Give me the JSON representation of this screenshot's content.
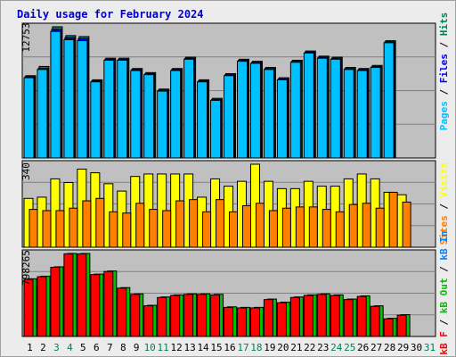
{
  "title": "Daily usage for February 2024",
  "colors": {
    "title": "#0000cc",
    "panel_bg": "#c0c0c0",
    "grid": "#808080",
    "hits": "#00805c",
    "files": "#0000ff",
    "pages": "#00c0ff",
    "visits": "#ffff00",
    "sites": "#ff8000",
    "kbin": "#0080ff",
    "kbout": "#00c000",
    "kbf": "#ff0000",
    "weekend": "#00805c",
    "weekday": "#000000"
  },
  "labels": {
    "top_axis": "12753",
    "mid_axis": "340",
    "bot_axis": "798265",
    "top_legend": [
      {
        "text": "Pages",
        "color": "#00c0ff"
      },
      {
        "text": " / ",
        "color": "#000000"
      },
      {
        "text": "Files",
        "color": "#0000ff"
      },
      {
        "text": " / ",
        "color": "#000000"
      },
      {
        "text": "Hits",
        "color": "#00805c"
      }
    ],
    "mid_legend": [
      {
        "text": "Sites",
        "color": "#ff8000"
      },
      {
        "text": " / ",
        "color": "#000000"
      },
      {
        "text": "Visits",
        "color": "#ffff00"
      }
    ],
    "bot_legend": [
      {
        "text": "kB F",
        "color": "#ff0000"
      },
      {
        "text": " / ",
        "color": "#000000"
      },
      {
        "text": "kB Out",
        "color": "#00c000"
      },
      {
        "text": " / ",
        "color": "#000000"
      },
      {
        "text": "kB In",
        "color": "#0080ff"
      }
    ]
  },
  "chart_data": {
    "type": "bar",
    "title": "Daily usage for February 2024",
    "x": [
      "1",
      "2",
      "3",
      "4",
      "5",
      "6",
      "7",
      "8",
      "9",
      "10",
      "11",
      "12",
      "13",
      "14",
      "15",
      "16",
      "17",
      "18",
      "19",
      "20",
      "21",
      "22",
      "23",
      "24",
      "25",
      "26",
      "27",
      "28",
      "29",
      "30",
      "31"
    ],
    "weekend_days": [
      "3",
      "4",
      "10",
      "11",
      "17",
      "18",
      "24",
      "25",
      "31"
    ],
    "panels": [
      {
        "max_label": "12753",
        "ymax": 12753,
        "series": [
          {
            "name": "Hits",
            "values": [
              8000,
              8900,
              12753,
              11900,
              11800,
              7600,
              9700,
              9700,
              8700,
              8300,
              6700,
              8700,
              9800,
              7600,
              5800,
              8200,
              9600,
              9400,
              8800,
              7800,
              9500,
              10400,
              9900,
              9800,
              8800,
              8700,
              9000,
              11400,
              0,
              0,
              0
            ]
          },
          {
            "name": "Files",
            "values": [
              7900,
              8700,
              12500,
              11700,
              11600,
              7500,
              9600,
              9600,
              8600,
              8200,
              6600,
              8600,
              9700,
              7500,
              5700,
              8100,
              9500,
              9300,
              8700,
              7700,
              9400,
              10300,
              9800,
              9700,
              8700,
              8600,
              8900,
              11300,
              0,
              0,
              0
            ]
          },
          {
            "name": "Pages",
            "values": [
              7800,
              8600,
              12300,
              11500,
              11400,
              7400,
              9500,
              9500,
              8500,
              8100,
              6500,
              8500,
              9600,
              7400,
              5600,
              8000,
              9400,
              9200,
              8600,
              7600,
              9300,
              10200,
              9700,
              9600,
              8600,
              8500,
              8800,
              11200,
              0,
              0,
              0
            ]
          }
        ]
      },
      {
        "max_label": "340",
        "ymax": 340,
        "series": [
          {
            "name": "Visits",
            "values": [
              200,
              205,
              280,
              265,
              320,
              305,
              260,
              230,
              290,
              300,
              300,
              300,
              300,
              205,
              280,
              250,
              270,
              340,
              270,
              240,
              240,
              270,
              250,
              250,
              280,
              300,
              280,
              225,
              215,
              0,
              0
            ]
          },
          {
            "name": "Sites",
            "values": [
              155,
              150,
              150,
              160,
              190,
              200,
              145,
              140,
              180,
              155,
              150,
              190,
              195,
              145,
              195,
              145,
              170,
              180,
              150,
              160,
              165,
              165,
              155,
              145,
              175,
              180,
              160,
              225,
              185,
              0,
              0
            ]
          }
        ]
      },
      {
        "max_label": "798265",
        "ymax": 798265,
        "series": [
          {
            "name": "kB In",
            "values": [
              0,
              0,
              0,
              0,
              0,
              0,
              0,
              0,
              0,
              0,
              0,
              0,
              0,
              0,
              0,
              0,
              0,
              0,
              0,
              0,
              0,
              0,
              0,
              0,
              0,
              0,
              0,
              0,
              0,
              0,
              0
            ]
          },
          {
            "name": "kB Out",
            "values": [
              555000,
              580000,
              670000,
              798265,
              798265,
              600000,
              630000,
              470000,
              410000,
              300000,
              380000,
              400000,
              410000,
              410000,
              405000,
              285000,
              280000,
              280000,
              360000,
              330000,
              380000,
              400000,
              410000,
              400000,
              360000,
              390000,
              295000,
              175000,
              210000,
              0,
              0
            ]
          },
          {
            "name": "kB F",
            "values": [
              550000,
              575000,
              665000,
              795000,
              795000,
              595000,
              625000,
              465000,
              405000,
              295000,
              375000,
              395000,
              405000,
              405000,
              400000,
              280000,
              275000,
              275000,
              355000,
              325000,
              375000,
              395000,
              405000,
              395000,
              355000,
              385000,
              290000,
              170000,
              205000,
              0,
              0
            ]
          }
        ]
      }
    ]
  }
}
